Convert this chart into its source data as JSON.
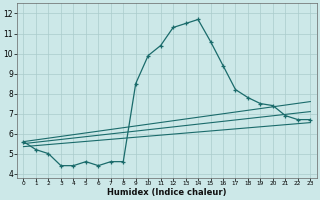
{
  "xlabel": "Humidex (Indice chaleur)",
  "bg_color": "#cce8e8",
  "grid_color": "#aacccc",
  "line_color": "#1a6b6b",
  "xlim": [
    -0.5,
    23.5
  ],
  "ylim": [
    3.8,
    12.5
  ],
  "xticks": [
    0,
    1,
    2,
    3,
    4,
    5,
    6,
    7,
    8,
    9,
    10,
    11,
    12,
    13,
    14,
    15,
    16,
    17,
    18,
    19,
    20,
    21,
    22,
    23
  ],
  "yticks": [
    4,
    5,
    6,
    7,
    8,
    9,
    10,
    11,
    12
  ],
  "curve1_x": [
    0,
    1,
    2,
    3,
    4,
    5,
    6,
    7,
    8,
    9,
    10,
    11,
    12,
    13,
    14,
    15,
    16,
    17,
    18,
    19,
    20,
    21,
    22,
    23
  ],
  "curve1_y": [
    5.6,
    5.2,
    5.0,
    4.4,
    4.4,
    4.6,
    4.4,
    4.6,
    4.6,
    8.5,
    9.9,
    10.4,
    11.3,
    11.5,
    11.7,
    10.6,
    9.4,
    8.2,
    7.8,
    7.5,
    7.4,
    6.9,
    6.7,
    6.7
  ],
  "curve2_x": [
    0,
    23
  ],
  "curve2_y": [
    5.6,
    7.6
  ],
  "curve3_x": [
    0,
    23
  ],
  "curve3_y": [
    5.5,
    7.1
  ],
  "curve4_x": [
    0,
    23
  ],
  "curve4_y": [
    5.35,
    6.55
  ]
}
